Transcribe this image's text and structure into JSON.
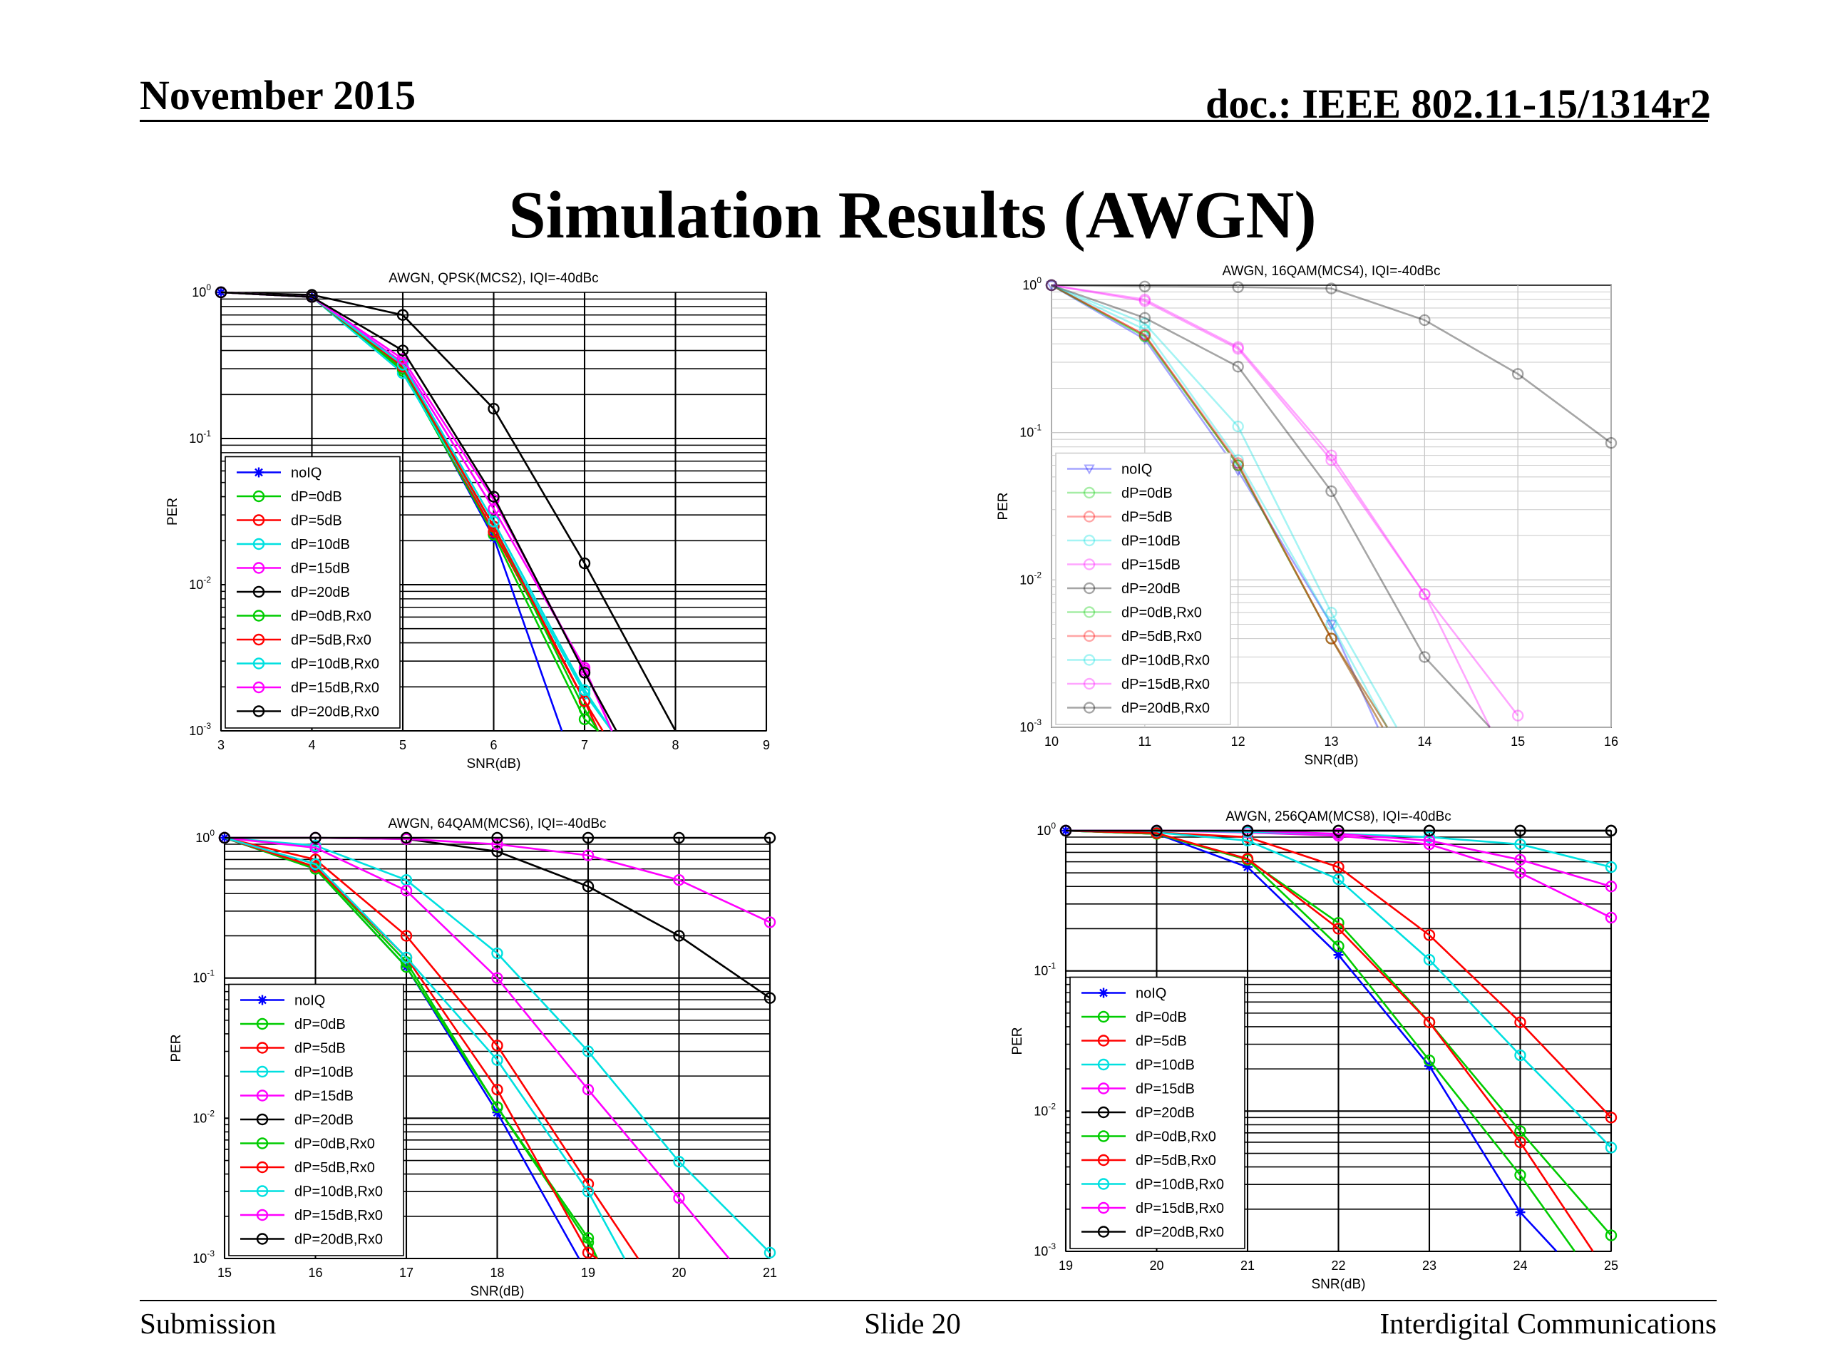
{
  "header": {
    "date": "November 2015",
    "doc": "doc.: IEEE 802.11-15/1314r2"
  },
  "slide": {
    "title": "Simulation Results (AWGN)"
  },
  "footer": {
    "left": "Submission",
    "center": "Slide 20",
    "right": "Interdigital Communications"
  },
  "chart_data": [
    {
      "type": "line",
      "title": "AWGN, QPSK(MCS2), IQI=-40dBc",
      "xlabel": "SNR(dB)",
      "ylabel": "PER",
      "xlim": [
        3,
        9
      ],
      "ylim": [
        0.001,
        1
      ],
      "yscale": "log",
      "grid": true,
      "legend": "bottom-left",
      "x_ticks": [
        "3",
        "4",
        "5",
        "6",
        "7",
        "8",
        "9"
      ],
      "y_tick_exponents": [
        "0",
        "-1",
        "-2",
        "-3"
      ],
      "series": [
        {
          "name": "noIQ",
          "color": "#0000ff",
          "marker": "star",
          "x": [
            3,
            4,
            5,
            6,
            6.75
          ],
          "y": [
            1,
            0.93,
            0.3,
            0.021,
            0.001
          ]
        },
        {
          "name": "dP=0dB",
          "color": "#00cc00",
          "marker": "circle",
          "x": [
            3,
            4,
            5,
            6,
            7,
            7.15
          ],
          "y": [
            1,
            0.93,
            0.29,
            0.022,
            0.0012,
            0.001
          ]
        },
        {
          "name": "dP=5dB",
          "color": "#ff0000",
          "marker": "circle",
          "x": [
            3,
            4,
            5,
            6,
            7,
            7.15
          ],
          "y": [
            1,
            0.93,
            0.3,
            0.023,
            0.0016,
            0.001
          ]
        },
        {
          "name": "dP=10dB",
          "color": "#00e0e0",
          "marker": "circle",
          "x": [
            3,
            4,
            5,
            6,
            7,
            7.3
          ],
          "y": [
            1,
            0.93,
            0.28,
            0.025,
            0.0018,
            0.001
          ]
        },
        {
          "name": "dP=15dB",
          "color": "#ff00ff",
          "marker": "circle",
          "x": [
            3,
            4,
            5,
            6,
            7,
            7.3
          ],
          "y": [
            1,
            0.93,
            0.33,
            0.033,
            0.0027,
            0.001
          ]
        },
        {
          "name": "dP=20dB",
          "color": "#000000",
          "marker": "circle",
          "x": [
            3,
            4,
            5,
            6,
            7,
            8
          ],
          "y": [
            1,
            0.96,
            0.7,
            0.16,
            0.014,
            0.001
          ]
        },
        {
          "name": "dP=0dB,Rx0",
          "color": "#00cc00",
          "marker": "circle",
          "x": [
            3,
            4,
            5,
            6,
            7,
            7.15
          ],
          "y": [
            1,
            0.93,
            0.3,
            0.025,
            0.0014,
            0.001
          ]
        },
        {
          "name": "dP=5dB,Rx0",
          "color": "#ff0000",
          "marker": "circle",
          "x": [
            3,
            4,
            5,
            6,
            7,
            7.2
          ],
          "y": [
            1,
            0.93,
            0.31,
            0.025,
            0.0016,
            0.001
          ]
        },
        {
          "name": "dP=10dB,Rx0",
          "color": "#00e0e0",
          "marker": "circle",
          "x": [
            3,
            4,
            5,
            6,
            7,
            7.3
          ],
          "y": [
            1,
            0.93,
            0.32,
            0.027,
            0.0019,
            0.001
          ]
        },
        {
          "name": "dP=15dB,Rx0",
          "color": "#ff00ff",
          "marker": "circle",
          "x": [
            3,
            4,
            5,
            6,
            7,
            7.3
          ],
          "y": [
            1,
            0.93,
            0.35,
            0.038,
            0.0026,
            0.001
          ]
        },
        {
          "name": "dP=20dB,Rx0",
          "color": "#000000",
          "marker": "circle",
          "x": [
            3,
            4,
            5,
            6,
            7,
            7.35
          ],
          "y": [
            1,
            0.93,
            0.4,
            0.04,
            0.0025,
            0.001
          ]
        }
      ]
    },
    {
      "type": "line",
      "title": "AWGN, 16QAM(MCS4), IQI=-40dBc",
      "xlabel": "SNR(dB)",
      "ylabel": "PER",
      "xlim": [
        10,
        16
      ],
      "ylim": [
        0.001,
        1
      ],
      "yscale": "log",
      "grid": true,
      "legend": "bottom-left",
      "x_ticks": [
        "10",
        "11",
        "12",
        "13",
        "14",
        "15",
        "16"
      ],
      "y_tick_exponents": [
        "0",
        "-1",
        "-2",
        "-3"
      ],
      "series": [
        {
          "name": "noIQ",
          "color": "#0000ff",
          "marker": "triangle",
          "x": [
            10,
            11,
            12,
            13,
            13.5
          ],
          "y": [
            1,
            0.43,
            0.055,
            0.005,
            0.001
          ]
        },
        {
          "name": "dP=0dB",
          "color": "#00cc00",
          "marker": "circle",
          "x": [
            10,
            11,
            12,
            13,
            13.55
          ],
          "y": [
            1,
            0.45,
            0.06,
            0.004,
            0.001
          ]
        },
        {
          "name": "dP=5dB",
          "color": "#ff0000",
          "marker": "circle",
          "x": [
            10,
            11,
            12,
            13,
            13.55
          ],
          "y": [
            1,
            0.46,
            0.06,
            0.004,
            0.001
          ]
        },
        {
          "name": "dP=10dB",
          "color": "#00e0e0",
          "marker": "circle",
          "x": [
            10,
            11,
            12,
            13,
            13.6
          ],
          "y": [
            1,
            0.5,
            0.065,
            0.005,
            0.001
          ]
        },
        {
          "name": "dP=15dB",
          "color": "#ff00ff",
          "marker": "circle",
          "x": [
            10,
            11,
            12,
            13,
            14,
            14.7
          ],
          "y": [
            1,
            0.78,
            0.37,
            0.065,
            0.008,
            0.001
          ]
        },
        {
          "name": "dP=20dB",
          "color": "#000000",
          "marker": "circle",
          "x": [
            10,
            11,
            12,
            13,
            14,
            15,
            16
          ],
          "y": [
            1,
            0.98,
            0.97,
            0.95,
            0.58,
            0.25,
            0.085
          ]
        },
        {
          "name": "dP=0dB,Rx0",
          "color": "#00cc00",
          "marker": "circle",
          "x": [
            10,
            11,
            12,
            13,
            13.6
          ],
          "y": [
            1,
            0.45,
            0.06,
            0.004,
            0.001
          ]
        },
        {
          "name": "dP=5dB,Rx0",
          "color": "#ff0000",
          "marker": "circle",
          "x": [
            10,
            11,
            12,
            13,
            13.6
          ],
          "y": [
            1,
            0.46,
            0.062,
            0.004,
            0.001
          ]
        },
        {
          "name": "dP=10dB,Rx0",
          "color": "#00e0e0",
          "marker": "circle",
          "x": [
            10,
            11,
            12,
            13,
            13.7
          ],
          "y": [
            1,
            0.55,
            0.11,
            0.006,
            0.001
          ]
        },
        {
          "name": "dP=15dB,Rx0",
          "color": "#ff00ff",
          "marker": "circle",
          "x": [
            10,
            11,
            12,
            13,
            14,
            15
          ],
          "y": [
            1,
            0.8,
            0.38,
            0.07,
            0.008,
            0.0012
          ]
        },
        {
          "name": "dP=20dB,Rx0",
          "color": "#000000",
          "marker": "circle",
          "x": [
            10,
            11,
            12,
            13,
            14,
            14.7
          ],
          "y": [
            1,
            0.6,
            0.28,
            0.04,
            0.003,
            0.001
          ]
        }
      ]
    },
    {
      "type": "line",
      "title": "AWGN, 64QAM(MCS6), IQI=-40dBc",
      "xlabel": "SNR(dB)",
      "ylabel": "PER",
      "xlim": [
        15,
        21
      ],
      "ylim": [
        0.001,
        1
      ],
      "yscale": "log",
      "grid": true,
      "legend": "bottom-left",
      "x_ticks": [
        "15",
        "16",
        "17",
        "18",
        "19",
        "20",
        "21"
      ],
      "y_tick_exponents": [
        "0",
        "-1",
        "-2",
        "-3"
      ],
      "series": [
        {
          "name": "noIQ",
          "color": "#0000ff",
          "marker": "star",
          "x": [
            15,
            16,
            17,
            18,
            18.9
          ],
          "y": [
            1,
            0.6,
            0.12,
            0.011,
            0.001
          ]
        },
        {
          "name": "dP=0dB",
          "color": "#00cc00",
          "marker": "circle",
          "x": [
            15,
            16,
            17,
            18,
            19,
            19.1
          ],
          "y": [
            1,
            0.62,
            0.13,
            0.012,
            0.0014,
            0.001
          ]
        },
        {
          "name": "dP=5dB",
          "color": "#ff0000",
          "marker": "circle",
          "x": [
            15,
            16,
            17,
            18,
            19,
            19.55
          ],
          "y": [
            1,
            0.7,
            0.2,
            0.033,
            0.0034,
            0.001
          ]
        },
        {
          "name": "dP=10dB",
          "color": "#00e0e0",
          "marker": "circle",
          "x": [
            15,
            16,
            17,
            18,
            19,
            20,
            21
          ],
          "y": [
            1,
            0.88,
            0.5,
            0.15,
            0.03,
            0.0049,
            0.0011
          ]
        },
        {
          "name": "dP=15dB",
          "color": "#ff00ff",
          "marker": "circle",
          "x": [
            15,
            16,
            17,
            18,
            19,
            20,
            20.55
          ],
          "y": [
            1,
            0.85,
            0.42,
            0.1,
            0.016,
            0.0027,
            0.001
          ]
        },
        {
          "name": "dP=20dB",
          "color": "#000000",
          "marker": "circle",
          "x": [
            15,
            16,
            17,
            18,
            19,
            20,
            21
          ],
          "y": [
            1,
            1,
            0.98,
            0.8,
            0.45,
            0.2,
            0.072
          ]
        },
        {
          "name": "dP=0dB,Rx0",
          "color": "#00cc00",
          "marker": "circle",
          "x": [
            15,
            16,
            17,
            18,
            19,
            19.1
          ],
          "y": [
            1,
            0.6,
            0.12,
            0.012,
            0.0013,
            0.001
          ]
        },
        {
          "name": "dP=5dB,Rx0",
          "color": "#ff0000",
          "marker": "circle",
          "x": [
            15,
            16,
            17,
            18,
            19,
            19.1
          ],
          "y": [
            1,
            0.62,
            0.14,
            0.016,
            0.0011,
            0.001
          ]
        },
        {
          "name": "dP=10dB,Rx0",
          "color": "#00e0e0",
          "marker": "circle",
          "x": [
            15,
            16,
            17,
            18,
            19,
            19.4
          ],
          "y": [
            1,
            0.65,
            0.14,
            0.026,
            0.003,
            0.001
          ]
        },
        {
          "name": "dP=15dB,Rx0",
          "color": "#ff00ff",
          "marker": "circle",
          "x": [
            15,
            16,
            17,
            18,
            19,
            20,
            21
          ],
          "y": [
            1,
            1,
            0.98,
            0.9,
            0.75,
            0.5,
            0.25
          ]
        },
        {
          "name": "dP=20dB,Rx0",
          "color": "#000000",
          "marker": "circle",
          "x": [
            15,
            16,
            17,
            18,
            19,
            20,
            21
          ],
          "y": [
            1,
            1,
            1,
            1,
            1,
            1,
            1
          ]
        }
      ]
    },
    {
      "type": "line",
      "title": "AWGN, 256QAM(MCS8), IQI=-40dBc",
      "xlabel": "SNR(dB)",
      "ylabel": "PER",
      "xlim": [
        19,
        25
      ],
      "ylim": [
        0.001,
        1
      ],
      "yscale": "log",
      "grid": true,
      "legend": "bottom-left",
      "x_ticks": [
        "19",
        "20",
        "21",
        "22",
        "23",
        "24",
        "25"
      ],
      "y_tick_exponents": [
        "0",
        "-1",
        "-2",
        "-3"
      ],
      "series": [
        {
          "name": "noIQ",
          "color": "#0000ff",
          "marker": "star",
          "x": [
            19,
            20,
            21,
            22,
            23,
            24,
            24.4
          ],
          "y": [
            1,
            0.95,
            0.55,
            0.13,
            0.021,
            0.0019,
            0.001
          ]
        },
        {
          "name": "dP=0dB",
          "color": "#00cc00",
          "marker": "circle",
          "x": [
            19,
            20,
            21,
            22,
            23,
            24,
            24.6
          ],
          "y": [
            1,
            0.95,
            0.62,
            0.15,
            0.023,
            0.0035,
            0.001
          ]
        },
        {
          "name": "dP=5dB",
          "color": "#ff0000",
          "marker": "circle",
          "x": [
            19,
            20,
            21,
            22,
            23,
            24,
            25
          ],
          "y": [
            1,
            0.97,
            0.9,
            0.55,
            0.18,
            0.043,
            0.009
          ]
        },
        {
          "name": "dP=10dB",
          "color": "#00e0e0",
          "marker": "circle",
          "x": [
            19,
            20,
            21,
            22,
            23,
            24,
            25
          ],
          "y": [
            1,
            0.97,
            0.85,
            0.45,
            0.12,
            0.025,
            0.0055
          ]
        },
        {
          "name": "dP=15dB",
          "color": "#ff00ff",
          "marker": "circle",
          "x": [
            19,
            20,
            21,
            22,
            23,
            24,
            25
          ],
          "y": [
            1,
            1,
            0.97,
            0.92,
            0.8,
            0.5,
            0.24
          ]
        },
        {
          "name": "dP=20dB",
          "color": "#000000",
          "marker": "circle",
          "x": [
            19,
            20,
            21,
            22,
            23,
            24,
            25
          ],
          "y": [
            1,
            1,
            1,
            1,
            1,
            1,
            1
          ]
        },
        {
          "name": "dP=0dB,Rx0",
          "color": "#00cc00",
          "marker": "circle",
          "x": [
            19,
            20,
            21,
            22,
            23,
            24,
            25
          ],
          "y": [
            1,
            0.95,
            0.62,
            0.22,
            0.043,
            0.0072,
            0.0013
          ]
        },
        {
          "name": "dP=5dB,Rx0",
          "color": "#ff0000",
          "marker": "circle",
          "x": [
            19,
            20,
            21,
            22,
            23,
            24,
            24.8
          ],
          "y": [
            1,
            0.96,
            0.63,
            0.2,
            0.043,
            0.006,
            0.001
          ]
        },
        {
          "name": "dP=10dB,Rx0",
          "color": "#00e0e0",
          "marker": "circle",
          "x": [
            19,
            20,
            21,
            22,
            23,
            24,
            25
          ],
          "y": [
            1,
            1,
            0.98,
            0.95,
            0.9,
            0.8,
            0.55
          ]
        },
        {
          "name": "dP=15dB,Rx0",
          "color": "#ff00ff",
          "marker": "circle",
          "x": [
            19,
            20,
            21,
            22,
            23,
            24,
            25
          ],
          "y": [
            1,
            1,
            1,
            0.95,
            0.85,
            0.62,
            0.4
          ]
        },
        {
          "name": "dP=20dB,Rx0",
          "color": "#000000",
          "marker": "circle",
          "x": [
            19,
            20,
            21,
            22,
            23,
            24,
            25
          ],
          "y": [
            1,
            1,
            1,
            1,
            1,
            1,
            1
          ]
        }
      ]
    }
  ]
}
